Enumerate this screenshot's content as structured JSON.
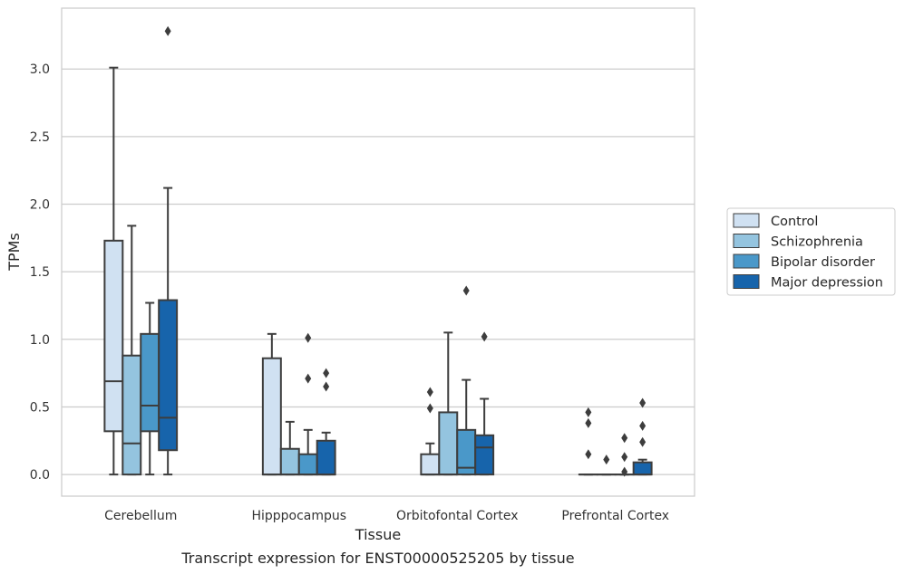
{
  "chart_data": {
    "type": "box",
    "ylabel": "TPMs",
    "xlabel": "Tissue",
    "caption": "Transcript expression for ENST00000525205 by tissue",
    "ylim": [
      -0.16,
      3.45
    ],
    "yticks": [
      0.0,
      0.5,
      1.0,
      1.5,
      2.0,
      2.5,
      3.0
    ],
    "ytick_labels": [
      "0.0",
      "0.5",
      "1.0",
      "1.5",
      "2.0",
      "2.5",
      "3.0"
    ],
    "grid": "horizontal",
    "legend_position": "right",
    "categories": [
      "Cerebellum",
      "Hipppocampus",
      "Orbitofontal Cortex",
      "Prefrontal Cortex"
    ],
    "series": [
      {
        "name": "Control",
        "color": "#d0e1f2",
        "boxes": [
          {
            "q1": 0.32,
            "median": 0.69,
            "q3": 1.73,
            "whisker_low": 0.0,
            "whisker_high": 3.01,
            "outliers": []
          },
          {
            "q1": 0.0,
            "median": 0.0,
            "q3": 0.86,
            "whisker_low": 0.0,
            "whisker_high": 1.04,
            "outliers": []
          },
          {
            "q1": 0.0,
            "median": 0.0,
            "q3": 0.15,
            "whisker_low": 0.0,
            "whisker_high": 0.23,
            "outliers": [
              0.49,
              0.61
            ]
          },
          {
            "q1": 0.0,
            "median": 0.0,
            "q3": 0.0,
            "whisker_low": 0.0,
            "whisker_high": 0.0,
            "outliers": [
              0.15,
              0.38,
              0.46
            ]
          }
        ]
      },
      {
        "name": "Schizophrenia",
        "color": "#94c4df",
        "boxes": [
          {
            "q1": 0.0,
            "median": 0.23,
            "q3": 0.88,
            "whisker_low": 0.0,
            "whisker_high": 1.84,
            "outliers": []
          },
          {
            "q1": 0.0,
            "median": 0.0,
            "q3": 0.19,
            "whisker_low": 0.0,
            "whisker_high": 0.39,
            "outliers": []
          },
          {
            "q1": 0.0,
            "median": 0.0,
            "q3": 0.46,
            "whisker_low": 0.0,
            "whisker_high": 1.05,
            "outliers": []
          },
          {
            "q1": 0.0,
            "median": 0.0,
            "q3": 0.0,
            "whisker_low": 0.0,
            "whisker_high": 0.0,
            "outliers": [
              0.11
            ]
          }
        ]
      },
      {
        "name": "Bipolar disorder",
        "color": "#4a98c9",
        "boxes": [
          {
            "q1": 0.32,
            "median": 0.51,
            "q3": 1.04,
            "whisker_low": 0.0,
            "whisker_high": 1.27,
            "outliers": []
          },
          {
            "q1": 0.0,
            "median": 0.0,
            "q3": 0.15,
            "whisker_low": 0.0,
            "whisker_high": 0.33,
            "outliers": [
              0.71,
              1.01
            ]
          },
          {
            "q1": 0.0,
            "median": 0.05,
            "q3": 0.33,
            "whisker_low": 0.0,
            "whisker_high": 0.7,
            "outliers": [
              1.36
            ]
          },
          {
            "q1": 0.0,
            "median": 0.0,
            "q3": 0.0,
            "whisker_low": 0.0,
            "whisker_high": 0.0,
            "outliers": [
              0.02,
              0.13,
              0.27
            ]
          }
        ]
      },
      {
        "name": "Major depression",
        "color": "#1764ab",
        "boxes": [
          {
            "q1": 0.18,
            "median": 0.42,
            "q3": 1.29,
            "whisker_low": 0.0,
            "whisker_high": 2.12,
            "outliers": [
              3.28
            ]
          },
          {
            "q1": 0.0,
            "median": 0.0,
            "q3": 0.25,
            "whisker_low": 0.0,
            "whisker_high": 0.31,
            "outliers": [
              0.65,
              0.75
            ]
          },
          {
            "q1": 0.0,
            "median": 0.2,
            "q3": 0.29,
            "whisker_low": 0.0,
            "whisker_high": 0.56,
            "outliers": [
              1.02
            ]
          },
          {
            "q1": 0.0,
            "median": 0.0,
            "q3": 0.09,
            "whisker_low": 0.0,
            "whisker_high": 0.11,
            "outliers": [
              0.24,
              0.36,
              0.53
            ]
          }
        ]
      }
    ]
  }
}
